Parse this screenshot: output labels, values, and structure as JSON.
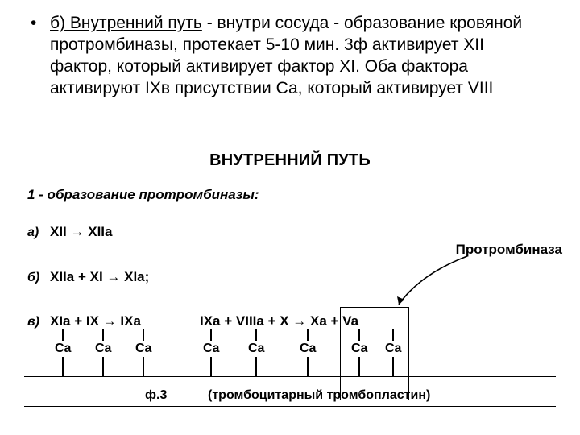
{
  "bullet": {
    "lead_underline": "б) Внутренний путь",
    "tail": " - внутри сосуда - образование кровяной протромбиназы, протекает 5-10 мин. 3ф активирует XII фактор, который активирует фактор XI. Оба фактора активируют IXв присутствии Са, который активирует VIII"
  },
  "title": "ВНУТРЕННИЙ ПУТЬ",
  "subtitle": "1 - образование протромбиназы:",
  "rows": {
    "a": {
      "label": "а)",
      "formula": "XII → XIIa"
    },
    "b": {
      "label": "б)",
      "formula": "XIIa + XI  →  XIa;"
    },
    "c": {
      "label": "в)",
      "formula_1": "XIa + IX → IXa",
      "formula_2": "IXa + VIIIa + X → Xa + Va"
    }
  },
  "protrombinaza": "Протромбиназа",
  "ca": "Ca",
  "f3": {
    "label": "ф.3",
    "paren": "(тромбоцитарный тромбопластин)"
  },
  "ca_positions_x": [
    68,
    118,
    168,
    252,
    308,
    372,
    436,
    478
  ],
  "colors": {
    "text": "#000000",
    "bg": "#ffffff"
  }
}
